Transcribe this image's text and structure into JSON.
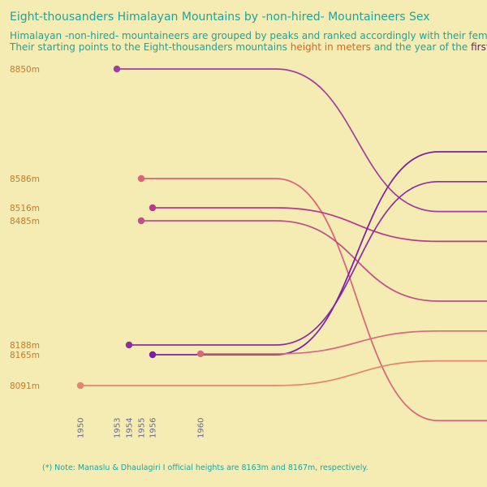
{
  "chart_data": {
    "type": "line",
    "title": "Eight-thousanders Himalayan Mountains by -non-hired- Mountaineers Sex",
    "subtitle_line1": "Himalayan -non-hired- mountaineers are grouped by peaks and ranked accordingly with their female mount",
    "subtitle_line2": {
      "part1": "Their starting points to the Eight-thousanders mountains ",
      "highlight1": "height in meters",
      "part2": " and the year of the ",
      "highlight2": "first ascensio",
      "part3": ""
    },
    "note": "(*) Note: Manaslu & Dhaulagiri I official heights are 8163m and 8167m, respectively.",
    "y_ticks": [
      {
        "label": "8850m",
        "value": 8850
      },
      {
        "label": "8586m",
        "value": 8586
      },
      {
        "label": "8516m",
        "value": 8516
      },
      {
        "label": "8485m",
        "value": 8485
      },
      {
        "label": "8188m",
        "value": 8188
      },
      {
        "label": "8165m",
        "value": 8165
      },
      {
        "label": "8091m",
        "value": 8091
      }
    ],
    "x_ticks": [
      "1950",
      "1953",
      "1954",
      "1955",
      "1956",
      "1960"
    ],
    "series": [
      {
        "first_ascent": 1953,
        "height": 8850,
        "end_rank": 3,
        "color": "#a33ea1"
      },
      {
        "first_ascent": 1955,
        "height": 8586,
        "end_rank": 10,
        "color": "#dc6275"
      },
      {
        "first_ascent": 1956,
        "height": 8516,
        "end_rank": 4,
        "color": "#b8388f"
      },
      {
        "first_ascent": 1955,
        "height": 8485,
        "end_rank": 6,
        "color": "#c0508a"
      },
      {
        "first_ascent": 1954,
        "height": 8188,
        "end_rank": 2,
        "color": "#8e2d9c"
      },
      {
        "first_ascent": 1956,
        "height": 8165,
        "end_rank": 1,
        "color": "#7c1ea6"
      },
      {
        "first_ascent": 1960,
        "height": 8167,
        "end_rank": 7,
        "color": "#d86880"
      },
      {
        "first_ascent": 1950,
        "height": 8091,
        "end_rank": 8,
        "color": "#e4846e"
      }
    ],
    "colors": {
      "background": "#f4ecb2",
      "title": "#21a39a",
      "y_tick": "#c9792b",
      "x_tick": "#6b6a8e"
    }
  }
}
